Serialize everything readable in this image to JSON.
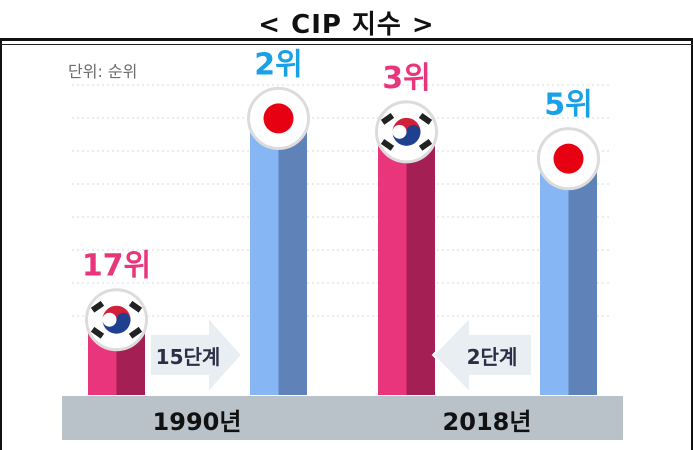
{
  "title": "< CIP 지수 >",
  "unit_label": "단위: 순위",
  "colors": {
    "korea_bar_front": "#e8357c",
    "korea_bar_side": "#a31f54",
    "japan_bar_front": "#86b6f4",
    "japan_bar_side": "#5f82b8",
    "korea_label": "#e8357c",
    "japan_label": "#1aa0e6",
    "baseline_band": "#b9c2c9",
    "grid": "#d8d8d8",
    "arrow": "#e9eef3"
  },
  "chart_data": {
    "type": "bar",
    "categories": [
      "1990년",
      "2018년"
    ],
    "series": [
      {
        "flag": "korea-flag-icon",
        "values": [
          17,
          3
        ],
        "labels": [
          "17위",
          "3위"
        ]
      },
      {
        "flag": "japan-flag-icon",
        "values": [
          2,
          5
        ],
        "labels": [
          "2위",
          "5위"
        ]
      }
    ],
    "annotations": [
      {
        "category": "1990년",
        "text": "15단계",
        "direction": "right"
      },
      {
        "category": "2018년",
        "text": "2단계",
        "direction": "left"
      }
    ],
    "y_scale": "rank (lower is better, taller bar)",
    "grid": true
  }
}
